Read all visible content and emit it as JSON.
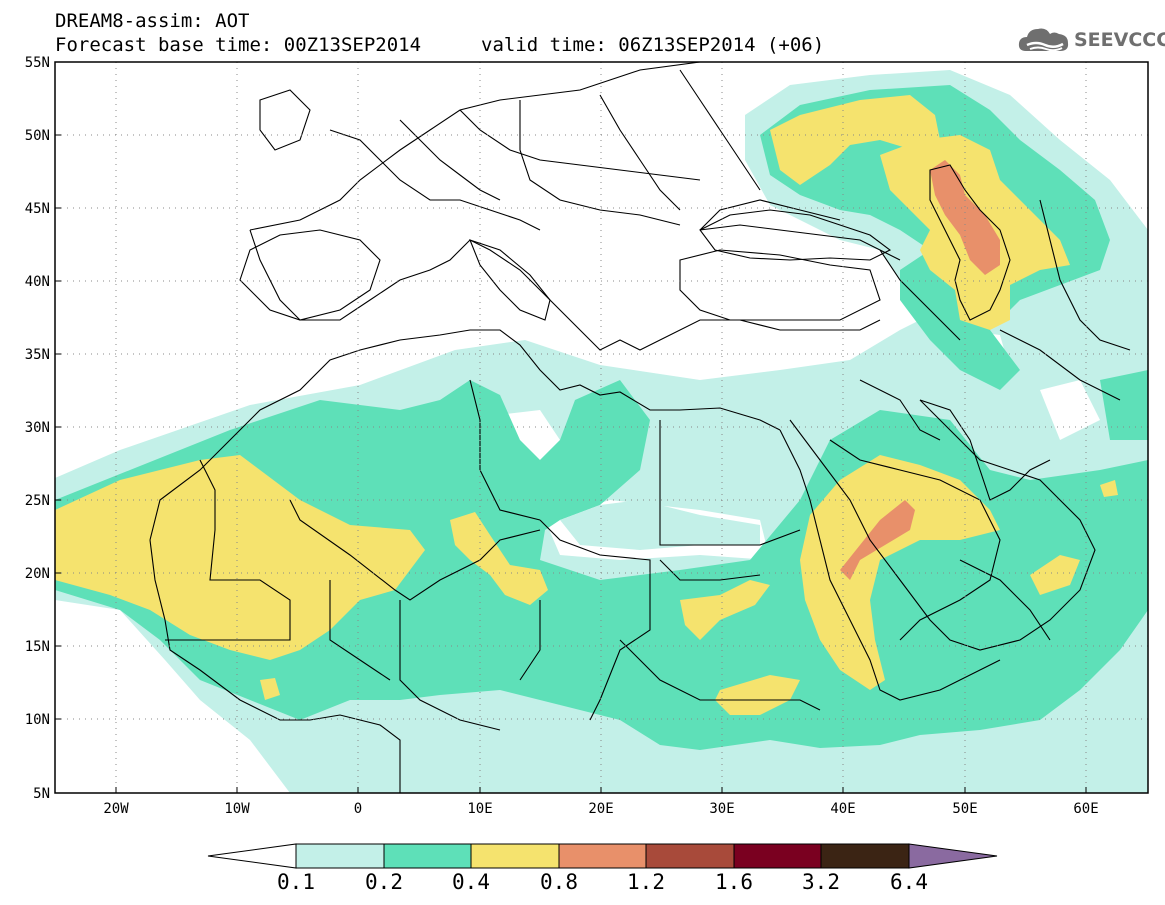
{
  "header": {
    "title_line1": "DREAM8-assim: AOT",
    "title_line2": "Forecast base time: 00Z13SEP2014",
    "valid_time": "valid time: 06Z13SEP2014 (+06)"
  },
  "logo": {
    "text": "SEEVCCC",
    "icon": "cloud-icon"
  },
  "map": {
    "projection": "lat-lon",
    "lon_range": [
      -25,
      65
    ],
    "lat_range": [
      5,
      55
    ],
    "lat_labels": [
      "55N",
      "50N",
      "45N",
      "40N",
      "35N",
      "30N",
      "25N",
      "20N",
      "15N",
      "10N",
      "5N"
    ],
    "lon_labels": [
      "20W",
      "10W",
      "0",
      "10E",
      "20E",
      "30E",
      "40E",
      "50E",
      "60E"
    ],
    "grid": "dotted"
  },
  "colorbar": {
    "labels": [
      "0.1",
      "0.2",
      "0.4",
      "0.8",
      "1.2",
      "1.6",
      "3.2",
      "6.4"
    ],
    "colors": {
      "below": "#ffffff",
      "c1": "#c3f0e8",
      "c2": "#5ee0b8",
      "c3": "#f5e36e",
      "c4": "#e8906a",
      "c5": "#a84a3a",
      "c6": "#7a0020",
      "c7": "#3b2414",
      "above": "#8a6aa0"
    }
  }
}
